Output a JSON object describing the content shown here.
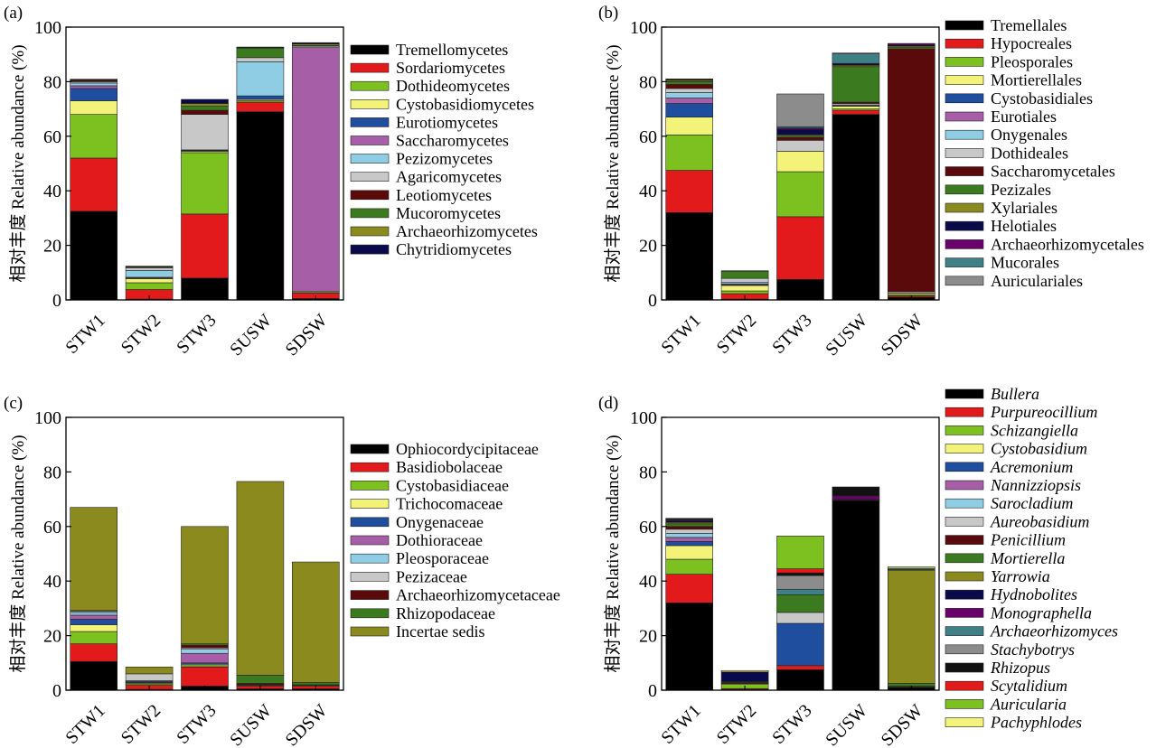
{
  "ylabel_cn": "相对丰度",
  "ylabel_en": "Relative abundance (%)",
  "chart_data": [
    {
      "panel_label": "(a)",
      "type": "bar",
      "stacked": true,
      "categories": [
        "STW1",
        "STW2",
        "STW3",
        "SUSW",
        "SDSW"
      ],
      "ylim": [
        0,
        100
      ],
      "yticks": [
        0,
        20,
        40,
        60,
        80,
        100
      ],
      "ylabel": "相对丰度 Relative abundance (%)",
      "legend_italic": false,
      "series": [
        {
          "name": "Tremellomycetes",
          "color": "#000000",
          "values": [
            32.5,
            0.3,
            8,
            69,
            0.5
          ]
        },
        {
          "name": "Sordariomycetes",
          "color": "#e31a1c",
          "values": [
            19.5,
            3.5,
            23.5,
            3.5,
            2
          ]
        },
        {
          "name": "Dothideomycetes",
          "color": "#7cc11f",
          "values": [
            16,
            2.5,
            22.5,
            0.5,
            0.5
          ]
        },
        {
          "name": "Cystobasidiomycetes",
          "color": "#f3f37a",
          "values": [
            5,
            1.5,
            0.5,
            0.5,
            0
          ]
        },
        {
          "name": "Eurotiomycetes",
          "color": "#1f4e9e",
          "values": [
            4.5,
            0.2,
            0.3,
            1.3,
            0
          ]
        },
        {
          "name": "Saccharomycetes",
          "color": "#a65ea6",
          "values": [
            1,
            0.3,
            0,
            0,
            89.5
          ]
        },
        {
          "name": "Pezizomycetes",
          "color": "#8ecde3",
          "values": [
            1,
            2.5,
            0.2,
            12.5,
            0
          ]
        },
        {
          "name": "Agaricomycetes",
          "color": "#c8c8c8",
          "values": [
            0.5,
            1,
            13,
            1.5,
            0.5
          ]
        },
        {
          "name": "Leotiomycetes",
          "color": "#5a0a0a",
          "values": [
            0.5,
            0.3,
            1.5,
            0,
            0
          ]
        },
        {
          "name": "Mucoromycetes",
          "color": "#3b7a1e",
          "values": [
            0.2,
            0.3,
            1.5,
            3.5,
            0.3
          ]
        },
        {
          "name": "Archaeorhizomycetes",
          "color": "#8a8a1e",
          "values": [
            0.1,
            0,
            1,
            0.2,
            0.5
          ]
        },
        {
          "name": "Chytridiomycetes",
          "color": "#0a0a4a",
          "values": [
            0.1,
            0,
            1.5,
            0.2,
            0.5
          ]
        }
      ]
    },
    {
      "panel_label": "(b)",
      "type": "bar",
      "stacked": true,
      "categories": [
        "STW1",
        "STW2",
        "STW3",
        "SUSW",
        "SDSW"
      ],
      "ylim": [
        0,
        100
      ],
      "yticks": [
        0,
        20,
        40,
        60,
        80,
        100
      ],
      "ylabel": "相对丰度 Relative abundance (%)",
      "legend_italic": false,
      "series": [
        {
          "name": "Tremellales",
          "color": "#000000",
          "values": [
            32,
            0.3,
            7.5,
            68,
            1
          ]
        },
        {
          "name": "Hypocreales",
          "color": "#e31a1c",
          "values": [
            15.5,
            2,
            23,
            1.5,
            0.5
          ]
        },
        {
          "name": "Pleosporales",
          "color": "#7cc11f",
          "values": [
            13,
            1,
            16.5,
            0.5,
            0.5
          ]
        },
        {
          "name": "Mortierellales",
          "color": "#f3f37a",
          "values": [
            6.5,
            2,
            7.5,
            1,
            0.5
          ]
        },
        {
          "name": "Cystobasidiales",
          "color": "#1f4e9e",
          "values": [
            5,
            0.3,
            0,
            0.2,
            0
          ]
        },
        {
          "name": "Eurotiales",
          "color": "#a65ea6",
          "values": [
            2,
            0.3,
            0,
            0,
            0
          ]
        },
        {
          "name": "Onygenales",
          "color": "#8ecde3",
          "values": [
            2,
            0.5,
            0,
            0.3,
            0
          ]
        },
        {
          "name": "Dothideales",
          "color": "#c8c8c8",
          "values": [
            1.5,
            1.5,
            4,
            0.5,
            0.5
          ]
        },
        {
          "name": "Saccharomycetales",
          "color": "#5a0a0a",
          "values": [
            1.5,
            0,
            1,
            0.5,
            89
          ]
        },
        {
          "name": "Pezizales",
          "color": "#3b7a1e",
          "values": [
            1,
            2.5,
            0.5,
            13,
            0.5
          ]
        },
        {
          "name": "Xylariales",
          "color": "#8a8a1e",
          "values": [
            0.5,
            0.3,
            0.5,
            0.5,
            0.5
          ]
        },
        {
          "name": "Helotiales",
          "color": "#0a0a4a",
          "values": [
            0.2,
            0,
            2,
            0.5,
            0.5
          ]
        },
        {
          "name": "Archaeorhizomycetales",
          "color": "#6a006a",
          "values": [
            0.2,
            0,
            0.5,
            0.2,
            0.5
          ]
        },
        {
          "name": "Mucorales",
          "color": "#3f7f86",
          "values": [
            0.1,
            0,
            0.5,
            3.5,
            0
          ]
        },
        {
          "name": "Auriculariales",
          "color": "#8c8c8c",
          "values": [
            0,
            0,
            12,
            0.3,
            0
          ]
        }
      ]
    },
    {
      "panel_label": "(c)",
      "type": "bar",
      "stacked": true,
      "categories": [
        "STW1",
        "STW2",
        "STW3",
        "SUSW",
        "SDSW"
      ],
      "ylim": [
        0,
        100
      ],
      "yticks": [
        0,
        20,
        40,
        60,
        80,
        100
      ],
      "ylabel": "相对丰度 Relative abundance (%)",
      "legend_italic": false,
      "series": [
        {
          "name": "Ophiocordycipitaceae",
          "color": "#000000",
          "values": [
            10.5,
            0.3,
            1.5,
            0.5,
            0.5
          ]
        },
        {
          "name": "Basidiobolaceae",
          "color": "#e31a1c",
          "values": [
            6.5,
            1.5,
            7,
            1,
            1
          ]
        },
        {
          "name": "Cystobasidiaceae",
          "color": "#7cc11f",
          "values": [
            4.5,
            0.5,
            0.5,
            0.3,
            0.3
          ]
        },
        {
          "name": "Trichocomaceae",
          "color": "#f3f37a",
          "values": [
            2.5,
            0.3,
            0.5,
            0,
            0
          ]
        },
        {
          "name": "Onygenaceae",
          "color": "#1f4e9e",
          "values": [
            2,
            0.3,
            0.5,
            0,
            0
          ]
        },
        {
          "name": "Dothioraceae",
          "color": "#a65ea6",
          "values": [
            1.5,
            0.3,
            3.5,
            0,
            0
          ]
        },
        {
          "name": "Pleosporaceae",
          "color": "#8ecde3",
          "values": [
            1,
            0.3,
            1.5,
            0,
            0
          ]
        },
        {
          "name": "Pezizaceae",
          "color": "#c8c8c8",
          "values": [
            0.5,
            2.5,
            0.5,
            0.2,
            0
          ]
        },
        {
          "name": "Archaeorhizomycetaceae",
          "color": "#5a0a0a",
          "values": [
            0.1,
            0,
            1,
            0.5,
            0.2
          ]
        },
        {
          "name": "Rhizopodaceae",
          "color": "#3b7a1e",
          "values": [
            0.1,
            0,
            0.5,
            3,
            0.8
          ]
        },
        {
          "name": "Incertae sedis",
          "color": "#8a8a1e",
          "values": [
            37.8,
            2.5,
            43,
            71,
            44.2
          ]
        }
      ]
    },
    {
      "panel_label": "(d)",
      "type": "bar",
      "stacked": true,
      "categories": [
        "STW1",
        "STW2",
        "STW3",
        "SUSW",
        "SDSW"
      ],
      "ylim": [
        0,
        100
      ],
      "yticks": [
        0,
        20,
        40,
        60,
        80,
        100
      ],
      "ylabel": "相对丰度 Relative abundance (%)",
      "legend_italic": true,
      "series": [
        {
          "name": "Bullera",
          "color": "#000000",
          "values": [
            32,
            0.3,
            7.5,
            69.5,
            1
          ]
        },
        {
          "name": "Purpureocillium",
          "color": "#e31a1c",
          "values": [
            10.5,
            0.3,
            1.5,
            0.2,
            0.2
          ]
        },
        {
          "name": "Schizangiella",
          "color": "#7cc11f",
          "values": [
            5.5,
            1.5,
            0,
            0.2,
            0.3
          ]
        },
        {
          "name": "Cystobasidium",
          "color": "#f3f37a",
          "values": [
            5,
            0.3,
            0,
            0,
            0
          ]
        },
        {
          "name": "Acremonium",
          "color": "#1f4e9e",
          "values": [
            1.5,
            0,
            15.5,
            0,
            0
          ]
        },
        {
          "name": "Nannizziopsis",
          "color": "#a65ea6",
          "values": [
            1.5,
            0,
            0,
            0,
            0
          ]
        },
        {
          "name": "Sarocladium",
          "color": "#8ecde3",
          "values": [
            1.5,
            0,
            0,
            0,
            0
          ]
        },
        {
          "name": "Aureobasidium",
          "color": "#c8c8c8",
          "values": [
            1.5,
            0,
            4,
            0,
            0
          ]
        },
        {
          "name": "Penicillium",
          "color": "#5a0a0a",
          "values": [
            1,
            0.3,
            0,
            0,
            0
          ]
        },
        {
          "name": "Mortierella",
          "color": "#3b7a1e",
          "values": [
            1,
            0.3,
            6.5,
            0,
            1
          ]
        },
        {
          "name": "Yarrowia",
          "color": "#8a8a1e",
          "values": [
            0.5,
            0.2,
            0,
            0,
            41.5
          ]
        },
        {
          "name": "Hydnobolites",
          "color": "#0a0a4a",
          "values": [
            0.5,
            3.5,
            0,
            0,
            0.2
          ]
        },
        {
          "name": "Monographella",
          "color": "#6a006a",
          "values": [
            0.3,
            0,
            0,
            1.3,
            0
          ]
        },
        {
          "name": "Archaeorhizomyces",
          "color": "#3f7f86",
          "values": [
            0.2,
            0,
            2,
            0,
            0.5
          ]
        },
        {
          "name": "Stachybotrys",
          "color": "#8c8c8c",
          "values": [
            0.2,
            0,
            5,
            0,
            0
          ]
        },
        {
          "name": "Rhizopus",
          "color": "#111111",
          "values": [
            0.2,
            0,
            1,
            3.3,
            0
          ]
        },
        {
          "name": "Scytalidium",
          "color": "#e31a1c",
          "values": [
            0.1,
            0,
            1.5,
            0,
            0
          ]
        },
        {
          "name": "Auricularia",
          "color": "#7cc11f",
          "values": [
            0,
            0,
            12,
            0,
            0
          ]
        },
        {
          "name": "Pachyphlodes",
          "color": "#f3f37a",
          "values": [
            0,
            0.5,
            0,
            0,
            0.5
          ]
        }
      ]
    }
  ]
}
